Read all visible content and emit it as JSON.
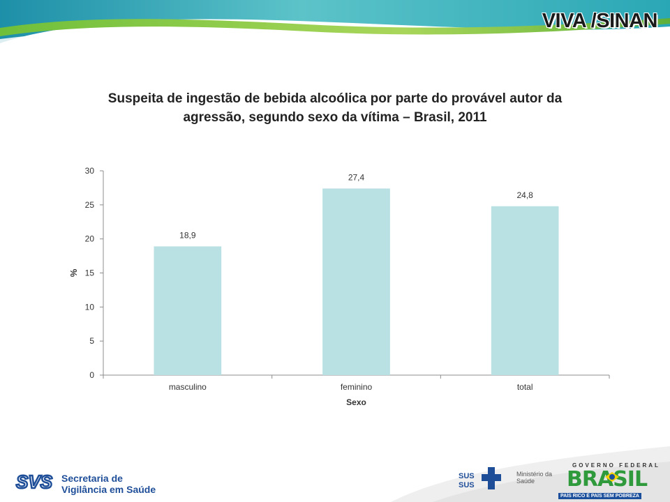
{
  "header": {
    "title": "VIVA /SINAN"
  },
  "chart_title_line1": "Suspeita de ingestão de bebida alcoólica por parte do provável autor da",
  "chart_title_line2": "agressão, segundo sexo da vítima – Brasil, 2011",
  "chart_data": {
    "type": "bar",
    "title": "Suspeita de ingestão de bebida alcoólica por parte do provável autor da agressão, segundo sexo da vítima – Brasil, 2011",
    "xlabel": "Sexo",
    "ylabel": "%",
    "categories": [
      "masculino",
      "feminino",
      "total"
    ],
    "values": [
      18.9,
      27.4,
      24.8
    ],
    "value_labels": [
      "18,9",
      "27,4",
      "24,8"
    ],
    "ylim": [
      0,
      30
    ],
    "yticks": [
      0,
      5,
      10,
      15,
      20,
      25,
      30
    ],
    "bar_color": "#b9e0e3",
    "grid": false,
    "legend": "none"
  },
  "footer": {
    "svs_line1": "Secretaria de",
    "svs_line2": "Vigilância em Saúde",
    "svs_logo": "SVS",
    "sus_label": "SUS",
    "ministerio_line1": "Ministério da",
    "ministerio_line2": "Saúde",
    "gov_top": "GOVERNO FEDERAL",
    "brasil_word": "BRASIL",
    "gov_bottom": "PAÍS RICO É PAÍS SEM POBREZA"
  }
}
